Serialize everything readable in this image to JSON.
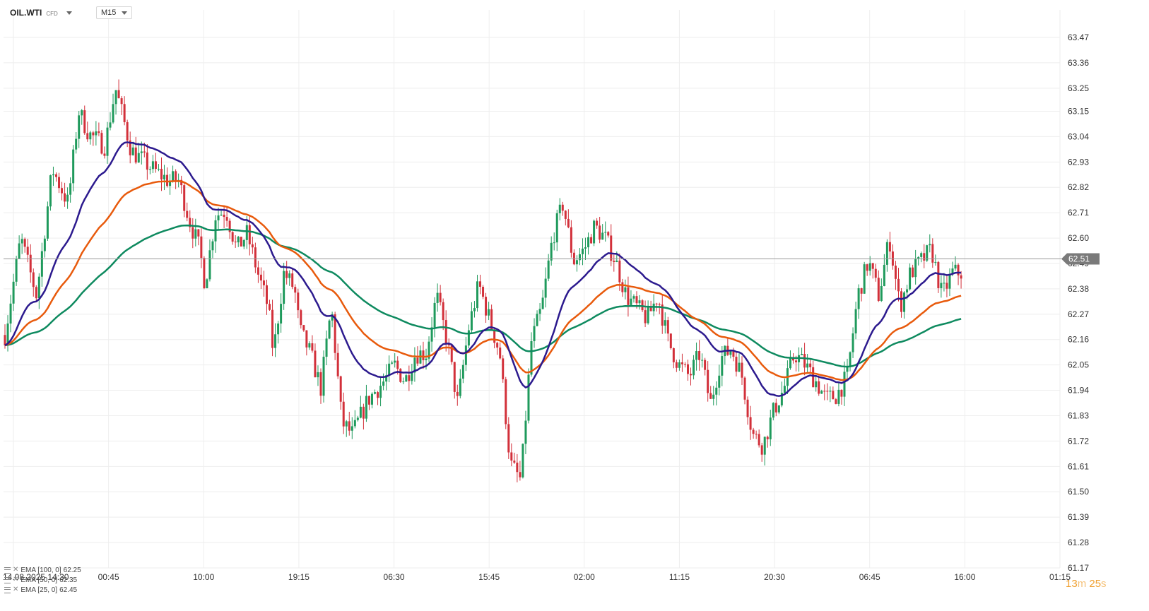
{
  "header": {
    "symbol": "OIL.WTI",
    "instrument_type": "CFD",
    "timeframe": "M15"
  },
  "legend": [
    {
      "label": "EMA [100, 0]",
      "value": "62.25",
      "color": "#0e8a5f"
    },
    {
      "label": "EMA [50, 0]",
      "value": "62.35",
      "color": "#e85a0c"
    },
    {
      "label": "EMA [25, 0]",
      "value": "62.45",
      "color": "#2c1a8e"
    }
  ],
  "timer": {
    "minutes": "13",
    "min_unit": "m",
    "seconds": "25",
    "sec_unit": "s"
  },
  "colors": {
    "up": "#1f9a5c",
    "down": "#d2303a",
    "grid": "#eeeeee",
    "current_price_line": "#999999",
    "price_badge_bg": "#7a7a7a"
  },
  "chart_data": {
    "type": "candlestick",
    "timeframe": "M15",
    "x_ticks": [
      "14.08.2025  14:30",
      "00:45",
      "10:00",
      "19:15",
      "06:30",
      "15:45",
      "02:00",
      "11:15",
      "20:30",
      "06:45",
      "16:00",
      "01:15"
    ],
    "y_ticks": [
      "63.47",
      "63.36",
      "63.25",
      "63.15",
      "63.04",
      "62.93",
      "62.82",
      "62.71",
      "62.60",
      "62.49",
      "62.38",
      "62.27",
      "62.16",
      "62.05",
      "61.94",
      "61.83",
      "61.72",
      "61.61",
      "61.50",
      "61.39",
      "61.28",
      "61.17"
    ],
    "ylim": [
      61.17,
      63.47
    ],
    "current_price": "62.51",
    "price_path": [
      [
        0,
        62.18
      ],
      [
        0.015,
        62.6
      ],
      [
        0.03,
        62.35
      ],
      [
        0.045,
        62.9
      ],
      [
        0.06,
        62.75
      ],
      [
        0.07,
        63.15
      ],
      [
        0.08,
        63.05
      ],
      [
        0.095,
        63.0
      ],
      [
        0.105,
        63.25
      ],
      [
        0.12,
        62.98
      ],
      [
        0.14,
        62.9
      ],
      [
        0.155,
        62.85
      ],
      [
        0.165,
        62.85
      ],
      [
        0.175,
        62.68
      ],
      [
        0.185,
        62.55
      ],
      [
        0.19,
        62.4
      ],
      [
        0.2,
        62.7
      ],
      [
        0.21,
        62.72
      ],
      [
        0.22,
        62.55
      ],
      [
        0.23,
        62.62
      ],
      [
        0.24,
        62.45
      ],
      [
        0.25,
        62.3
      ],
      [
        0.255,
        62.1
      ],
      [
        0.265,
        62.45
      ],
      [
        0.275,
        62.38
      ],
      [
        0.28,
        62.2
      ],
      [
        0.29,
        62.1
      ],
      [
        0.3,
        61.95
      ],
      [
        0.31,
        62.3
      ],
      [
        0.32,
        61.8
      ],
      [
        0.33,
        61.75
      ],
      [
        0.345,
        61.9
      ],
      [
        0.36,
        61.98
      ],
      [
        0.37,
        62.05
      ],
      [
        0.38,
        61.98
      ],
      [
        0.39,
        62.1
      ],
      [
        0.4,
        62.1
      ],
      [
        0.41,
        62.35
      ],
      [
        0.42,
        62.15
      ],
      [
        0.43,
        61.88
      ],
      [
        0.44,
        62.2
      ],
      [
        0.45,
        62.4
      ],
      [
        0.46,
        62.25
      ],
      [
        0.47,
        62.1
      ],
      [
        0.48,
        61.62
      ],
      [
        0.49,
        61.55
      ],
      [
        0.5,
        62.15
      ],
      [
        0.51,
        62.3
      ],
      [
        0.52,
        62.6
      ],
      [
        0.53,
        62.75
      ],
      [
        0.54,
        62.5
      ],
      [
        0.55,
        62.55
      ],
      [
        0.56,
        62.65
      ],
      [
        0.57,
        62.6
      ],
      [
        0.58,
        62.5
      ],
      [
        0.59,
        62.35
      ],
      [
        0.6,
        62.3
      ],
      [
        0.61,
        62.25
      ],
      [
        0.62,
        62.35
      ],
      [
        0.63,
        62.15
      ],
      [
        0.64,
        62.05
      ],
      [
        0.65,
        62.0
      ],
      [
        0.66,
        62.1
      ],
      [
        0.67,
        61.88
      ],
      [
        0.68,
        62.08
      ],
      [
        0.69,
        62.12
      ],
      [
        0.7,
        62.0
      ],
      [
        0.71,
        61.75
      ],
      [
        0.72,
        61.7
      ],
      [
        0.73,
        61.85
      ],
      [
        0.74,
        61.95
      ],
      [
        0.75,
        62.1
      ],
      [
        0.76,
        62.05
      ],
      [
        0.77,
        61.98
      ],
      [
        0.78,
        61.9
      ],
      [
        0.79,
        61.92
      ],
      [
        0.8,
        62.0
      ],
      [
        0.81,
        62.35
      ],
      [
        0.82,
        62.5
      ],
      [
        0.83,
        62.35
      ],
      [
        0.84,
        62.6
      ],
      [
        0.85,
        62.3
      ],
      [
        0.86,
        62.45
      ],
      [
        0.87,
        62.5
      ],
      [
        0.88,
        62.55
      ],
      [
        0.89,
        62.35
      ],
      [
        0.9,
        62.45
      ],
      [
        0.91,
        62.45
      ]
    ],
    "series": [
      {
        "name": "EMA [100, 0]",
        "color": "#0e8a5f",
        "period": 100,
        "last": 62.25
      },
      {
        "name": "EMA [50, 0]",
        "color": "#e85a0c",
        "period": 50,
        "last": 62.35
      },
      {
        "name": "EMA [25, 0]",
        "color": "#2c1a8e",
        "period": 25,
        "last": 62.45
      }
    ],
    "grid": true,
    "legend_position": "bottom-left"
  }
}
